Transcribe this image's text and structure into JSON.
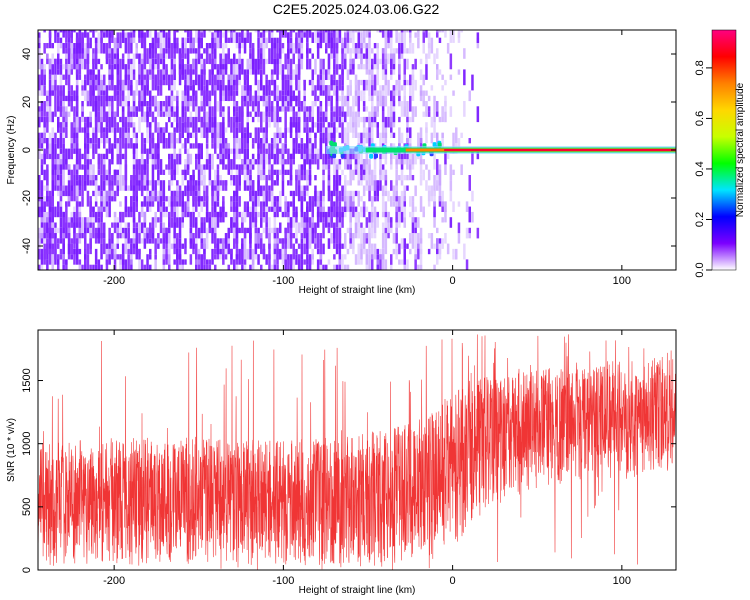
{
  "title": "C2E5.2025.024.03.06.G22",
  "chart_data": [
    {
      "type": "heatmap",
      "xlabel": "Height of straight line (km)",
      "ylabel": "Frequency (Hz)",
      "xlim": [
        -245,
        132
      ],
      "ylim": [
        -50,
        50
      ],
      "x_ticks": [
        -200,
        -100,
        0,
        100
      ],
      "y_ticks": [
        -40,
        -20,
        0,
        20,
        40
      ],
      "colorbar": {
        "label": "Normalized spectral amplitude",
        "range": [
          0,
          0.95
        ],
        "ticks": [
          0.0,
          0.2,
          0.4,
          0.6,
          0.8
        ],
        "colors": [
          "#ffffff",
          "#7b00ff",
          "#0000ff",
          "#00e5ff",
          "#00ff00",
          "#c8ff00",
          "#ffd700",
          "#ff8000",
          "#ff0000",
          "#ff0080"
        ]
      },
      "signal_line": {
        "frequency": 0,
        "x_start": -75,
        "x_end": 132
      },
      "noise_extent": {
        "dense_until": -60,
        "fading_until": 15
      }
    },
    {
      "type": "line",
      "xlabel": "Height of straight line (km)",
      "ylabel": "SNR (10 * v/v)",
      "xlim": [
        -245,
        132
      ],
      "ylim": [
        0,
        1900
      ],
      "x_ticks": [
        -200,
        -100,
        0,
        100
      ],
      "y_ticks": [
        0,
        500,
        1000,
        1500
      ],
      "line_color": "#f03535",
      "envelope": {
        "x": [
          -245,
          -200,
          -150,
          -100,
          -50,
          -30,
          -15,
          0,
          10,
          25,
          50,
          75,
          100,
          132
        ],
        "lower": [
          50,
          40,
          40,
          40,
          40,
          60,
          100,
          200,
          350,
          500,
          650,
          700,
          720,
          750
        ],
        "upper": [
          1000,
          1050,
          1050,
          1020,
          1100,
          1150,
          1250,
          1400,
          1500,
          1550,
          1600,
          1600,
          1650,
          1700
        ]
      },
      "spike_max": 1880
    }
  ]
}
